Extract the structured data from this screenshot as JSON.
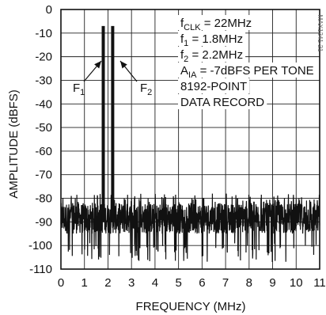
{
  "chart_data": {
    "type": "line",
    "xlabel": "FREQUENCY (MHz)",
    "ylabel": "AMPLITUDE (dBFS)",
    "xlim": [
      0,
      11
    ],
    "ylim": [
      -110,
      0
    ],
    "x_ticks": [
      "0",
      "1",
      "2",
      "3",
      "4",
      "5",
      "6",
      "7",
      "8",
      "9",
      "10",
      "11"
    ],
    "y_ticks": [
      "0",
      "-10",
      "-20",
      "-30",
      "-40",
      "-50",
      "-60",
      "-70",
      "-80",
      "-90",
      "-100",
      "-110"
    ],
    "grid": true,
    "series_color": "#111111",
    "noise_floor": {
      "x_range": [
        0,
        11
      ],
      "y_top_approx": -78,
      "y_bottom_approx": -107,
      "typical_range": [
        -95,
        -82
      ]
    },
    "tones": [
      {
        "label_main": "F",
        "label_sub": "1",
        "x": 1.8,
        "y": -7
      },
      {
        "label_main": "F",
        "label_sub": "2",
        "x": 2.2,
        "y": -7
      }
    ],
    "annotations": [
      {
        "main": "f",
        "sub": "CLK",
        "rest": " = 22MHz"
      },
      {
        "main": "f",
        "sub": "1",
        "rest": " = 1.8MHz"
      },
      {
        "main": "f",
        "sub": "2",
        "rest": " = 2.2MHz"
      },
      {
        "main": "A",
        "sub": "IA",
        "rest": " = -7dBFS PER TONE"
      },
      {
        "main": "8192-POINT",
        "sub": "",
        "rest": ""
      },
      {
        "main": "DATA RECORD",
        "sub": "",
        "rest": ""
      }
    ],
    "figure_code": "MAX1241-21"
  }
}
